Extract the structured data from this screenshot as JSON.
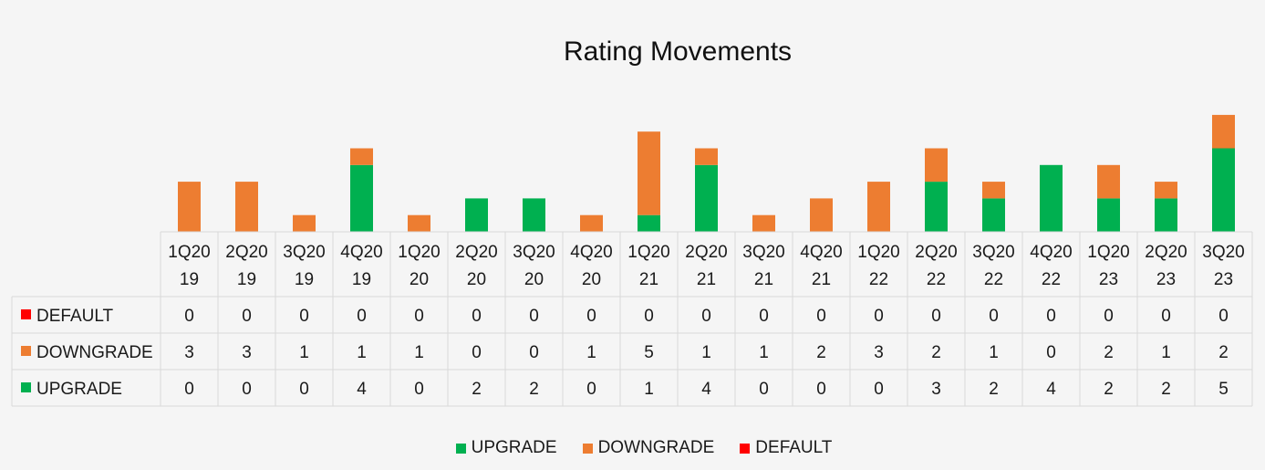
{
  "chart_data": {
    "type": "bar",
    "stacked": true,
    "title": "Rating Movements",
    "categories": [
      "1Q2019",
      "2Q2019",
      "3Q2019",
      "4Q2019",
      "1Q2020",
      "2Q2020",
      "3Q2020",
      "4Q2020",
      "1Q2021",
      "2Q2021",
      "3Q2021",
      "4Q2021",
      "1Q2022",
      "2Q2022",
      "3Q2022",
      "4Q2022",
      "1Q2023",
      "2Q2023",
      "3Q2023"
    ],
    "category_lines": [
      [
        "1Q20",
        "19"
      ],
      [
        "2Q20",
        "19"
      ],
      [
        "3Q20",
        "19"
      ],
      [
        "4Q20",
        "19"
      ],
      [
        "1Q20",
        "20"
      ],
      [
        "2Q20",
        "20"
      ],
      [
        "3Q20",
        "20"
      ],
      [
        "4Q20",
        "20"
      ],
      [
        "1Q20",
        "21"
      ],
      [
        "2Q20",
        "21"
      ],
      [
        "3Q20",
        "21"
      ],
      [
        "4Q20",
        "21"
      ],
      [
        "1Q20",
        "22"
      ],
      [
        "2Q20",
        "22"
      ],
      [
        "3Q20",
        "22"
      ],
      [
        "4Q20",
        "22"
      ],
      [
        "1Q20",
        "23"
      ],
      [
        "2Q20",
        "23"
      ],
      [
        "3Q20",
        "23"
      ]
    ],
    "series": [
      {
        "name": "UPGRADE",
        "color": "#00b050",
        "values": [
          0,
          0,
          0,
          4,
          0,
          2,
          2,
          0,
          1,
          4,
          0,
          0,
          0,
          3,
          2,
          4,
          2,
          2,
          5
        ]
      },
      {
        "name": "DOWNGRADE",
        "color": "#ed7d31",
        "values": [
          3,
          3,
          1,
          1,
          1,
          0,
          0,
          1,
          5,
          1,
          1,
          2,
          3,
          2,
          1,
          0,
          2,
          1,
          2
        ]
      },
      {
        "name": "DEFAULT",
        "color": "#ff0000",
        "values": [
          0,
          0,
          0,
          0,
          0,
          0,
          0,
          0,
          0,
          0,
          0,
          0,
          0,
          0,
          0,
          0,
          0,
          0,
          0
        ]
      }
    ],
    "table_rows": [
      "DEFAULT",
      "DOWNGRADE",
      "UPGRADE"
    ],
    "legend": [
      "UPGRADE",
      "DOWNGRADE",
      "DEFAULT"
    ],
    "legend_position": "bottom",
    "ylim": [
      0,
      7
    ],
    "grid": false
  }
}
